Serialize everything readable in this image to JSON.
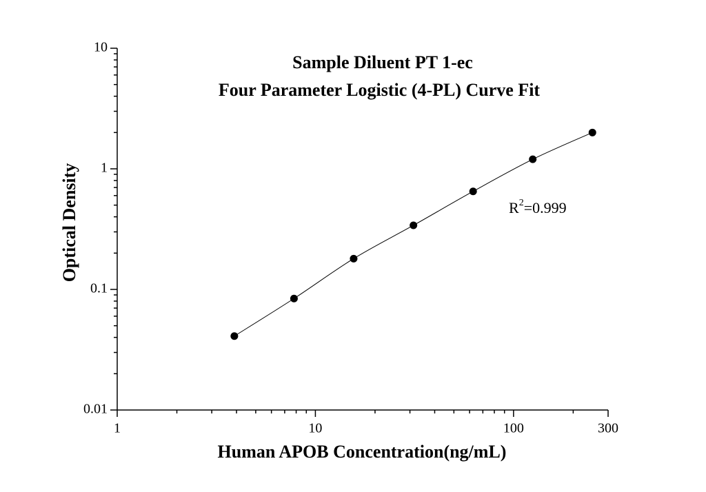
{
  "chart_data": {
    "type": "scatter",
    "title": "Sample Diluent PT 1-ec",
    "subtitle": "Four Parameter Logistic (4-PL) Curve Fit",
    "x_label": "Human APOB Concentration(ng/mL)",
    "y_label": "Optical Density",
    "annotation": {
      "base": "R",
      "superscript": "2",
      "text": "=0.999"
    },
    "x_scale": "log",
    "y_scale": "log",
    "xlim": [
      1,
      300
    ],
    "ylim": [
      0.01,
      10
    ],
    "xticks": [
      1,
      10,
      100,
      300
    ],
    "yticks": [
      0.01,
      0.1,
      1,
      10
    ],
    "xminor_ticks": [
      2,
      3,
      4,
      5,
      6,
      7,
      8,
      9,
      20,
      30,
      40,
      50,
      60,
      70,
      80,
      90,
      200
    ],
    "yminor_ticks": [
      0.02,
      0.03,
      0.04,
      0.05,
      0.06,
      0.07,
      0.08,
      0.09,
      0.2,
      0.3,
      0.4,
      0.5,
      0.6,
      0.7,
      0.8,
      0.9,
      2,
      3,
      4,
      5,
      6,
      7,
      8,
      9
    ],
    "color": "#000000",
    "fit_curve": true,
    "x": [
      3.9,
      7.8,
      15.6,
      31.25,
      62.5,
      125,
      250
    ],
    "values": [
      0.041,
      0.084,
      0.18,
      0.34,
      0.65,
      1.2,
      2.0
    ]
  }
}
